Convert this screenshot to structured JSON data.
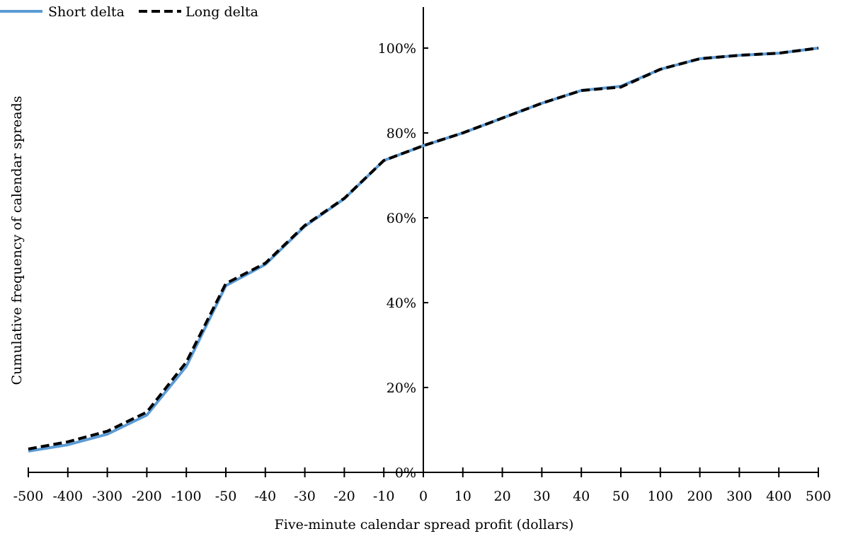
{
  "chart_data": {
    "type": "line",
    "title": "",
    "xlabel": "Five-minute calendar spread profit (dollars)",
    "ylabel": "Cumulative frequency of calendar spreads",
    "categories": [
      "-500",
      "-400",
      "-300",
      "-200",
      "-100",
      "-50",
      "-40",
      "-30",
      "-20",
      "-10",
      "0",
      "10",
      "20",
      "30",
      "40",
      "50",
      "100",
      "200",
      "300",
      "400",
      "500"
    ],
    "yticks": [
      "0%",
      "20%",
      "40%",
      "60%",
      "80%",
      "100%"
    ],
    "ylim": [
      0,
      1.0
    ],
    "grid": false,
    "legend_position": "top-left",
    "series": [
      {
        "name": "Short delta",
        "color": "#5b9bd5",
        "style": "solid",
        "values": [
          0.05,
          0.065,
          0.09,
          0.135,
          0.25,
          0.44,
          0.49,
          0.58,
          0.645,
          0.735,
          0.77,
          0.8,
          0.835,
          0.87,
          0.9,
          0.91,
          0.95,
          0.975,
          0.983,
          0.988,
          1.0
        ]
      },
      {
        "name": "Long delta",
        "color": "#000000",
        "style": "dashed",
        "values": [
          0.055,
          0.072,
          0.097,
          0.142,
          0.26,
          0.445,
          0.493,
          0.582,
          0.646,
          0.735,
          0.77,
          0.8,
          0.835,
          0.87,
          0.9,
          0.908,
          0.95,
          0.975,
          0.983,
          0.988,
          1.0
        ]
      }
    ]
  }
}
